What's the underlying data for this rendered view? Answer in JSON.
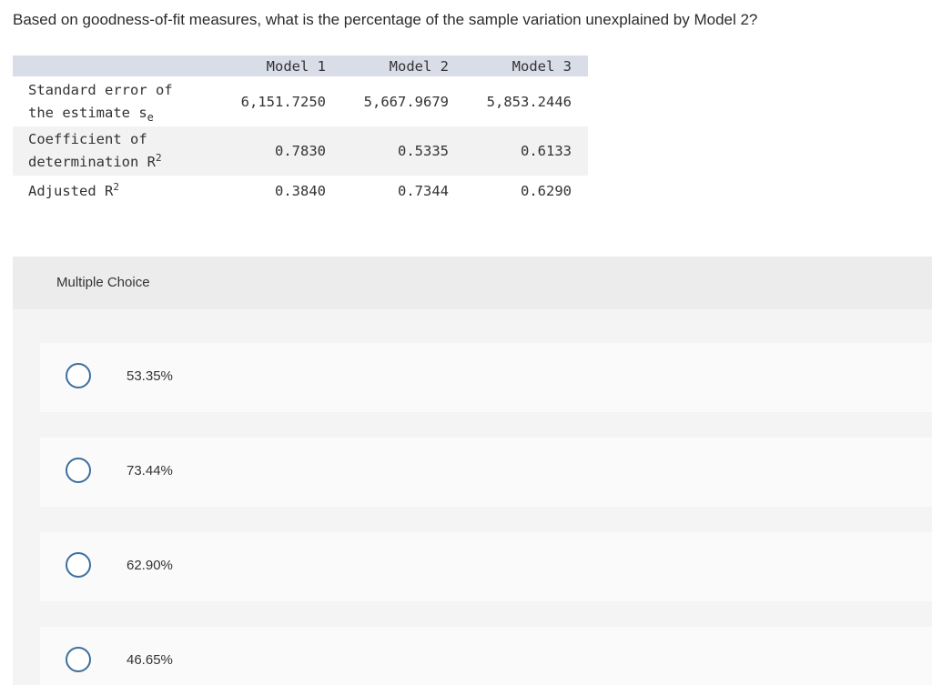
{
  "question": "Based on goodness-of-fit measures, what is the percentage of the sample variation unexplained by Model 2?",
  "table": {
    "columns": [
      "Model 1",
      "Model 2",
      "Model 3"
    ],
    "rows": [
      {
        "label_line1": "Standard error of",
        "label_line2": "the estimate s",
        "label_sub": "e",
        "values": [
          "6,151.7250",
          "5,667.9679",
          "5,853.2446"
        ]
      },
      {
        "label_line1": "Coefficient of",
        "label_line2": "determination R",
        "label_sup": "2",
        "values": [
          "0.7830",
          "0.5335",
          "0.6133"
        ]
      },
      {
        "label_line1": "Adjusted R",
        "label_sup": "2",
        "values": [
          "0.3840",
          "0.7344",
          "0.6290"
        ]
      }
    ]
  },
  "multiple_choice": {
    "title": "Multiple Choice",
    "options": [
      "53.35%",
      "73.44%",
      "62.90%",
      "46.65%"
    ]
  },
  "colors": {
    "header_band": "#d8dde8",
    "radio_border": "#3d6f9e",
    "panel_bg": "#f4f4f4"
  }
}
